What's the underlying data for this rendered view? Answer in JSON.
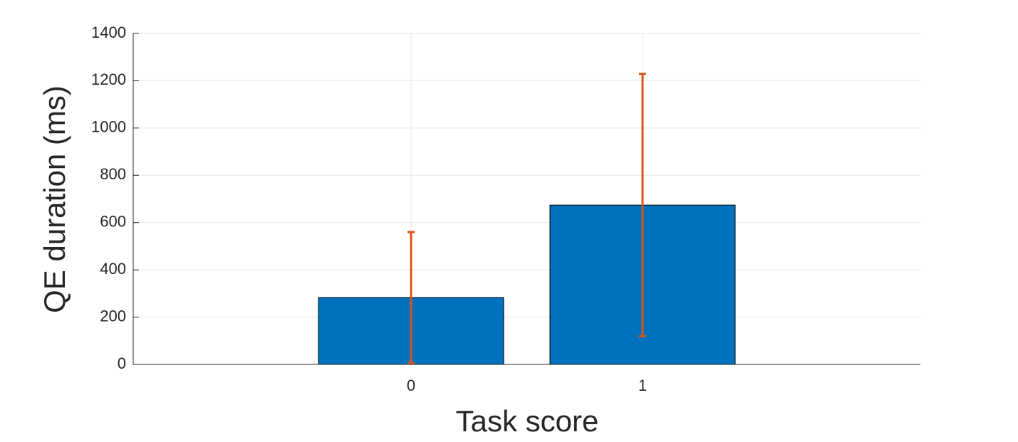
{
  "chart_data": {
    "type": "bar",
    "x_label": "Task score",
    "y_label": "QE duration (ms)",
    "x": [
      0,
      1
    ],
    "values": [
      283,
      674
    ],
    "errors": [
      277,
      555
    ],
    "color": "#0072bd",
    "error_color": "#d95319",
    "bar_width": 0.8,
    "xlim": [
      -1.2,
      2.2
    ],
    "xticks": [
      0,
      1
    ],
    "ylim": [
      0,
      1400
    ],
    "yticks": [
      0,
      200,
      400,
      600,
      800,
      1000,
      1200,
      1400
    ],
    "grid": true
  }
}
